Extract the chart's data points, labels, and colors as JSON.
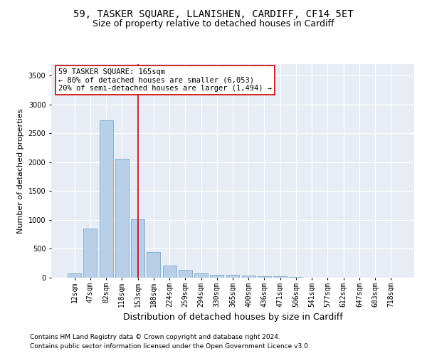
{
  "title": "59, TASKER SQUARE, LLANISHEN, CARDIFF, CF14 5ET",
  "subtitle": "Size of property relative to detached houses in Cardiff",
  "xlabel": "Distribution of detached houses by size in Cardiff",
  "ylabel": "Number of detached properties",
  "categories": [
    "12sqm",
    "47sqm",
    "82sqm",
    "118sqm",
    "153sqm",
    "188sqm",
    "224sqm",
    "259sqm",
    "294sqm",
    "330sqm",
    "365sqm",
    "400sqm",
    "436sqm",
    "471sqm",
    "506sqm",
    "541sqm",
    "577sqm",
    "612sqm",
    "647sqm",
    "683sqm",
    "718sqm"
  ],
  "values": [
    75,
    850,
    2720,
    2060,
    1010,
    450,
    215,
    130,
    70,
    55,
    50,
    40,
    30,
    20,
    8,
    5,
    3,
    2,
    2,
    1,
    1
  ],
  "bar_color": "#b8cfe8",
  "bar_edge_color": "#7aaacf",
  "vline_x_index": 4,
  "vline_color": "#cc0000",
  "annotation_line1": "59 TASKER SQUARE: 165sqm",
  "annotation_line2": "← 80% of detached houses are smaller (6,053)",
  "annotation_line3": "20% of semi-detached houses are larger (1,494) →",
  "ylim": [
    0,
    3700
  ],
  "yticks": [
    0,
    500,
    1000,
    1500,
    2000,
    2500,
    3000,
    3500
  ],
  "footnote1": "Contains HM Land Registry data © Crown copyright and database right 2024.",
  "footnote2": "Contains public sector information licensed under the Open Government Licence v3.0.",
  "axes_bg": "#e8ecf4",
  "fig_bg": "#ffffff",
  "title_fontsize": 10,
  "subtitle_fontsize": 9,
  "xlabel_fontsize": 9,
  "ylabel_fontsize": 8,
  "tick_fontsize": 7,
  "annot_fontsize": 7.5,
  "footnote_fontsize": 6.5
}
